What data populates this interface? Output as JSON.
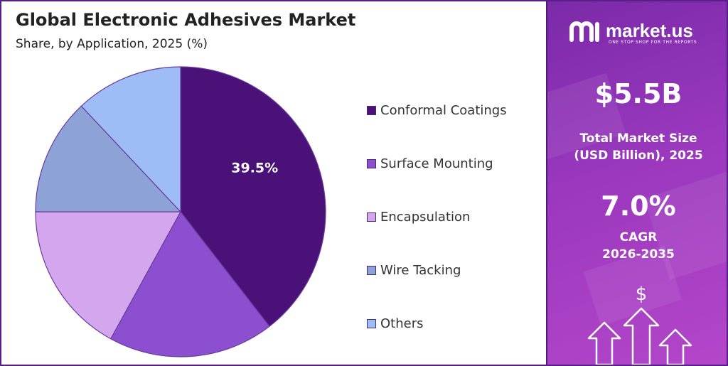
{
  "header": {
    "title": "Global Electronic Adhesives Market",
    "subtitle": "Share, by Application, 2025 (%)"
  },
  "chart_data": {
    "type": "pie",
    "categories": [
      "Conformal Coatings",
      "Surface Mounting",
      "Encapsulation",
      "Wire Tacking",
      "Others"
    ],
    "values": [
      39.5,
      18.5,
      17.0,
      13.0,
      12.0
    ],
    "data_labels": [
      "39.5%",
      "",
      "",
      "",
      ""
    ],
    "colors": [
      "#4a1278",
      "#8b4fd0",
      "#d3a6ee",
      "#8da3d8",
      "#9ebcf5"
    ],
    "legend_placement": "right"
  },
  "brand": {
    "name": "market.us",
    "tagline": "ONE STOP SHOP FOR THE REPORTS"
  },
  "stats": {
    "market_size": "$5.5B",
    "market_size_label_1": "Total Market Size",
    "market_size_label_2": "(USD Billion), 2025",
    "cagr": "7.0%",
    "cagr_label_1": "CAGR",
    "cagr_label_2": "2026-2035"
  },
  "icons": [
    "market-us-logo-icon",
    "dollar-sign-icon",
    "up-arrow-icon"
  ]
}
